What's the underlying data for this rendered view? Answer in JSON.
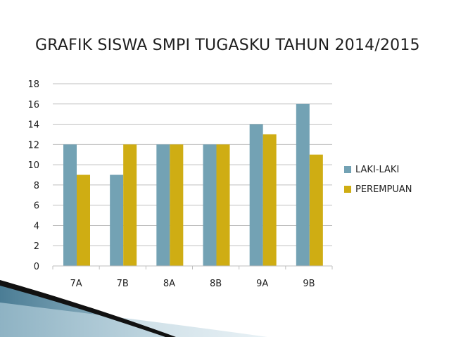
{
  "slide": {
    "title": "GRAFIK SISWA SMPI TUGASKU TAHUN 2014/2015"
  },
  "colors": {
    "laki": "#73a2b4",
    "perempuan": "#cfad13",
    "grid": "#bfbfbf",
    "axis_text": "#1f1f1f"
  },
  "chart_data": {
    "type": "bar",
    "title": "GRAFIK SISWA SMPI TUGASKU TAHUN 2014/2015",
    "xlabel": "",
    "ylabel": "",
    "categories": [
      "7A",
      "7B",
      "8A",
      "8B",
      "9A",
      "9B"
    ],
    "series": [
      {
        "name": "LAKI-LAKI",
        "values": [
          12,
          9,
          12,
          12,
          14,
          16
        ]
      },
      {
        "name": "PEREMPUAN",
        "values": [
          9,
          12,
          12,
          12,
          13,
          11
        ]
      }
    ],
    "ylim": [
      0,
      18
    ],
    "yticks": [
      0,
      2,
      4,
      6,
      8,
      10,
      12,
      14,
      16,
      18
    ],
    "grid": true,
    "legend": "right"
  }
}
